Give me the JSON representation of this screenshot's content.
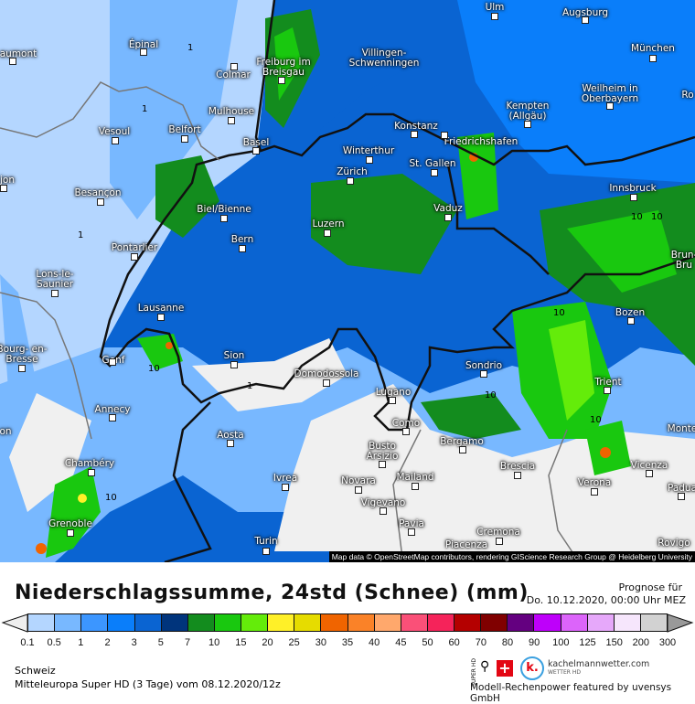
{
  "map": {
    "cities": [
      "aumont",
      "Épinal",
      "Colmar",
      "Freiburg im Breisgau",
      "Villingen-Schwenningen",
      "Ulm",
      "Augsburg",
      "München",
      "Weilheim in Oberbayern",
      "Kempten (Allgäu)",
      "Ro",
      "Mulhouse",
      "Vesoul",
      "Belfort",
      "Basel",
      "Konstanz",
      "Friedrichshafen",
      "Winterthur",
      "St. Gallen",
      "Zürich",
      "jon",
      "Innsbruck",
      "Besançon",
      "Biel/Bienne",
      "Vaduz",
      "Luzern",
      "Bern",
      "Pontarlier",
      "Brun- Bru",
      "Lons-le- Saunier",
      "Lausanne",
      "Bozen",
      "Bourg- en-Bresse",
      "Genf",
      "Sion",
      "Domodossola",
      "Sondrio",
      "Trient",
      "Lugano",
      "Annecy",
      "Como",
      "on",
      "Monte",
      "Aosta",
      "Bergamo",
      "Busto Arsizio",
      "Vicenza",
      "Brescia",
      "Chambéry",
      "Ivrea",
      "Mailand",
      "Novara",
      "Verona",
      "Padua",
      "Vigevano",
      "Grenoble",
      "Pavia",
      "Cremona",
      "Turin",
      "Rovigo",
      "Piacenza"
    ],
    "contour_labels": [
      "1",
      "10"
    ],
    "attribution": "Map data © OpenStreetMap contributors, rendering GIScience Research Group @ Heidelberg University"
  },
  "legend": {
    "title": "Niederschlagssumme, 24std (Schnee) (mm)",
    "forecast_label": "Prognose für",
    "forecast_time": "Do. 10.12.2020, 00:00 Uhr MEZ",
    "ticks": [
      "0.1",
      "0.5",
      "1",
      "2",
      "3",
      "5",
      "7",
      "10",
      "15",
      "20",
      "25",
      "30",
      "35",
      "40",
      "45",
      "50",
      "60",
      "70",
      "80",
      "90",
      "100",
      "125",
      "150",
      "200",
      "300"
    ],
    "colors": [
      "#b4d6ff",
      "#78b8ff",
      "#3c96ff",
      "#0a7efa",
      "#0a64d2",
      "#00347c",
      "#138c1e",
      "#19c80f",
      "#64ec0a",
      "#fff028",
      "#e6dc00",
      "#f06400",
      "#fa8228",
      "#ffa86c",
      "#fa5078",
      "#f5235a",
      "#b40000",
      "#800000",
      "#640080",
      "#be00fa",
      "#dc64fa",
      "#e6a8fa",
      "#f6e6fc",
      "#d2d2d2"
    ],
    "under_color": "#eeeeee",
    "over_color": "#999999"
  },
  "footer": {
    "region": "Schweiz",
    "model": "Mitteleuropa Super HD (3 Tage) vom  08.12.2020/12z",
    "logo_super": "SUPER HD",
    "site": "kachelmannwetter.com",
    "site_sub": "WETTER HD",
    "logo_letter": "k.",
    "credit": "Modell-Rechenpower featured by uvensys GmbH"
  }
}
